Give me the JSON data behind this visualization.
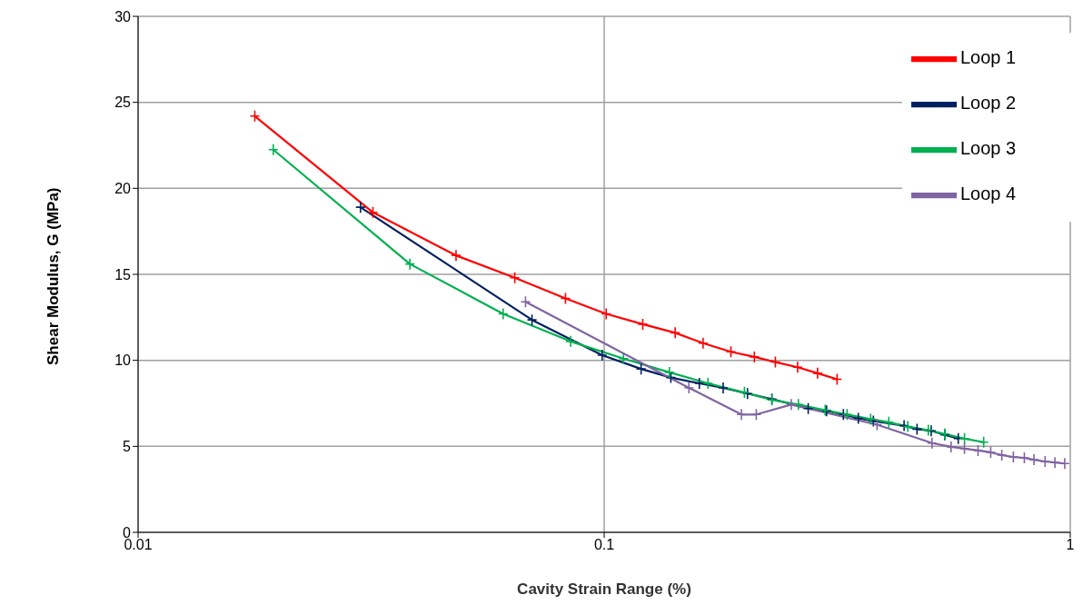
{
  "chart_data": {
    "type": "line",
    "xlabel": "Cavity Strain Range (%)",
    "ylabel": "Shear Modulus, G (MPa)",
    "log": "x",
    "xlim": [
      0.01,
      1
    ],
    "xticks": [
      0.01,
      0.1,
      1
    ],
    "ylim": [
      0,
      30
    ],
    "yticks": [
      0,
      5,
      10,
      15,
      20,
      25,
      30
    ],
    "grid": true,
    "legend": "top right",
    "marker": "cross",
    "line_style": "solid",
    "series": [
      {
        "name": "Loop 1",
        "color": "#ff0000",
        "x": [
          0.0178,
          0.0319,
          0.0481,
          0.0643,
          0.0826,
          0.101,
          0.121,
          0.142,
          0.163,
          0.187,
          0.21,
          0.233,
          0.26,
          0.287,
          0.316
        ],
        "values": [
          24.2,
          18.6,
          16.1,
          14.8,
          13.6,
          12.7,
          12.1,
          11.6,
          11.0,
          10.5,
          10.2,
          9.9,
          9.6,
          9.25,
          8.9
        ]
      },
      {
        "name": "Loop 2",
        "color": "#002060",
        "x": [
          0.03,
          0.07,
          0.099,
          0.12,
          0.139,
          0.16,
          0.18,
          0.203,
          0.229,
          0.274,
          0.3,
          0.326,
          0.351,
          0.378,
          0.44,
          0.469,
          0.503,
          0.538,
          0.575
        ],
        "values": [
          18.9,
          12.35,
          10.3,
          9.5,
          9.0,
          8.66,
          8.4,
          8.07,
          7.75,
          7.2,
          7.06,
          6.85,
          6.63,
          6.47,
          6.2,
          6.0,
          5.9,
          5.67,
          5.45
        ]
      },
      {
        "name": "Loop 3",
        "color": "#00b050",
        "x": [
          0.0195,
          0.0383,
          0.0607,
          0.0847,
          0.11,
          0.138,
          0.167,
          0.2,
          0.229,
          0.261,
          0.298,
          0.332,
          0.373,
          0.408,
          0.448,
          0.496,
          0.538,
          0.593,
          0.652
        ],
        "values": [
          22.25,
          15.6,
          12.7,
          11.1,
          10.1,
          9.3,
          8.66,
          8.13,
          7.7,
          7.43,
          7.1,
          6.85,
          6.58,
          6.4,
          6.15,
          5.94,
          5.72,
          5.45,
          5.24
        ]
      },
      {
        "name": "Loop 4",
        "color": "#8064a2",
        "x": [
          0.0678,
          0.152,
          0.197,
          0.212,
          0.252,
          0.385,
          0.505,
          0.555,
          0.593,
          0.634,
          0.675,
          0.713,
          0.755,
          0.797,
          0.836,
          0.883,
          0.927,
          0.973
        ],
        "values": [
          13.4,
          8.4,
          6.85,
          6.85,
          7.43,
          6.26,
          5.19,
          4.97,
          4.87,
          4.76,
          4.65,
          4.49,
          4.38,
          4.33,
          4.22,
          4.12,
          4.06,
          4.0
        ]
      }
    ]
  }
}
